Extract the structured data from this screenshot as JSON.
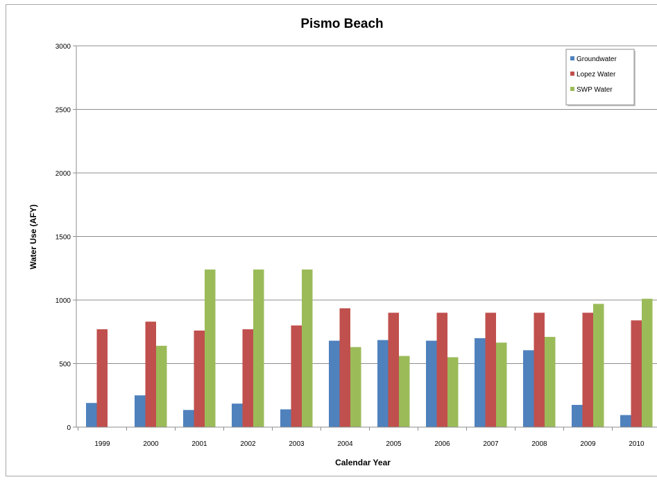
{
  "chart_data": {
    "type": "bar",
    "title": "Pismo Beach",
    "xlabel": "Calendar Year",
    "ylabel": "Water Use (AFY)",
    "ylim": [
      0,
      3000
    ],
    "yticks": [
      0,
      500,
      1000,
      1500,
      2000,
      2500,
      3000
    ],
    "grid": true,
    "legend_position": "top-right",
    "categories": [
      "1999",
      "2000",
      "2001",
      "2002",
      "2003",
      "2004",
      "2005",
      "2006",
      "2007",
      "2008",
      "2009",
      "2010"
    ],
    "series": [
      {
        "name": "Groundwater",
        "color": "#4f81bd",
        "values": [
          190,
          250,
          135,
          185,
          140,
          680,
          685,
          680,
          700,
          605,
          175,
          95
        ]
      },
      {
        "name": "Lopez Water",
        "color": "#c0504d",
        "values": [
          770,
          830,
          760,
          770,
          800,
          935,
          900,
          900,
          900,
          900,
          900,
          840
        ]
      },
      {
        "name": "SWP Water",
        "color": "#9bbb59",
        "values": [
          0,
          640,
          1240,
          1240,
          1240,
          630,
          560,
          550,
          665,
          710,
          970,
          1010
        ]
      }
    ]
  }
}
